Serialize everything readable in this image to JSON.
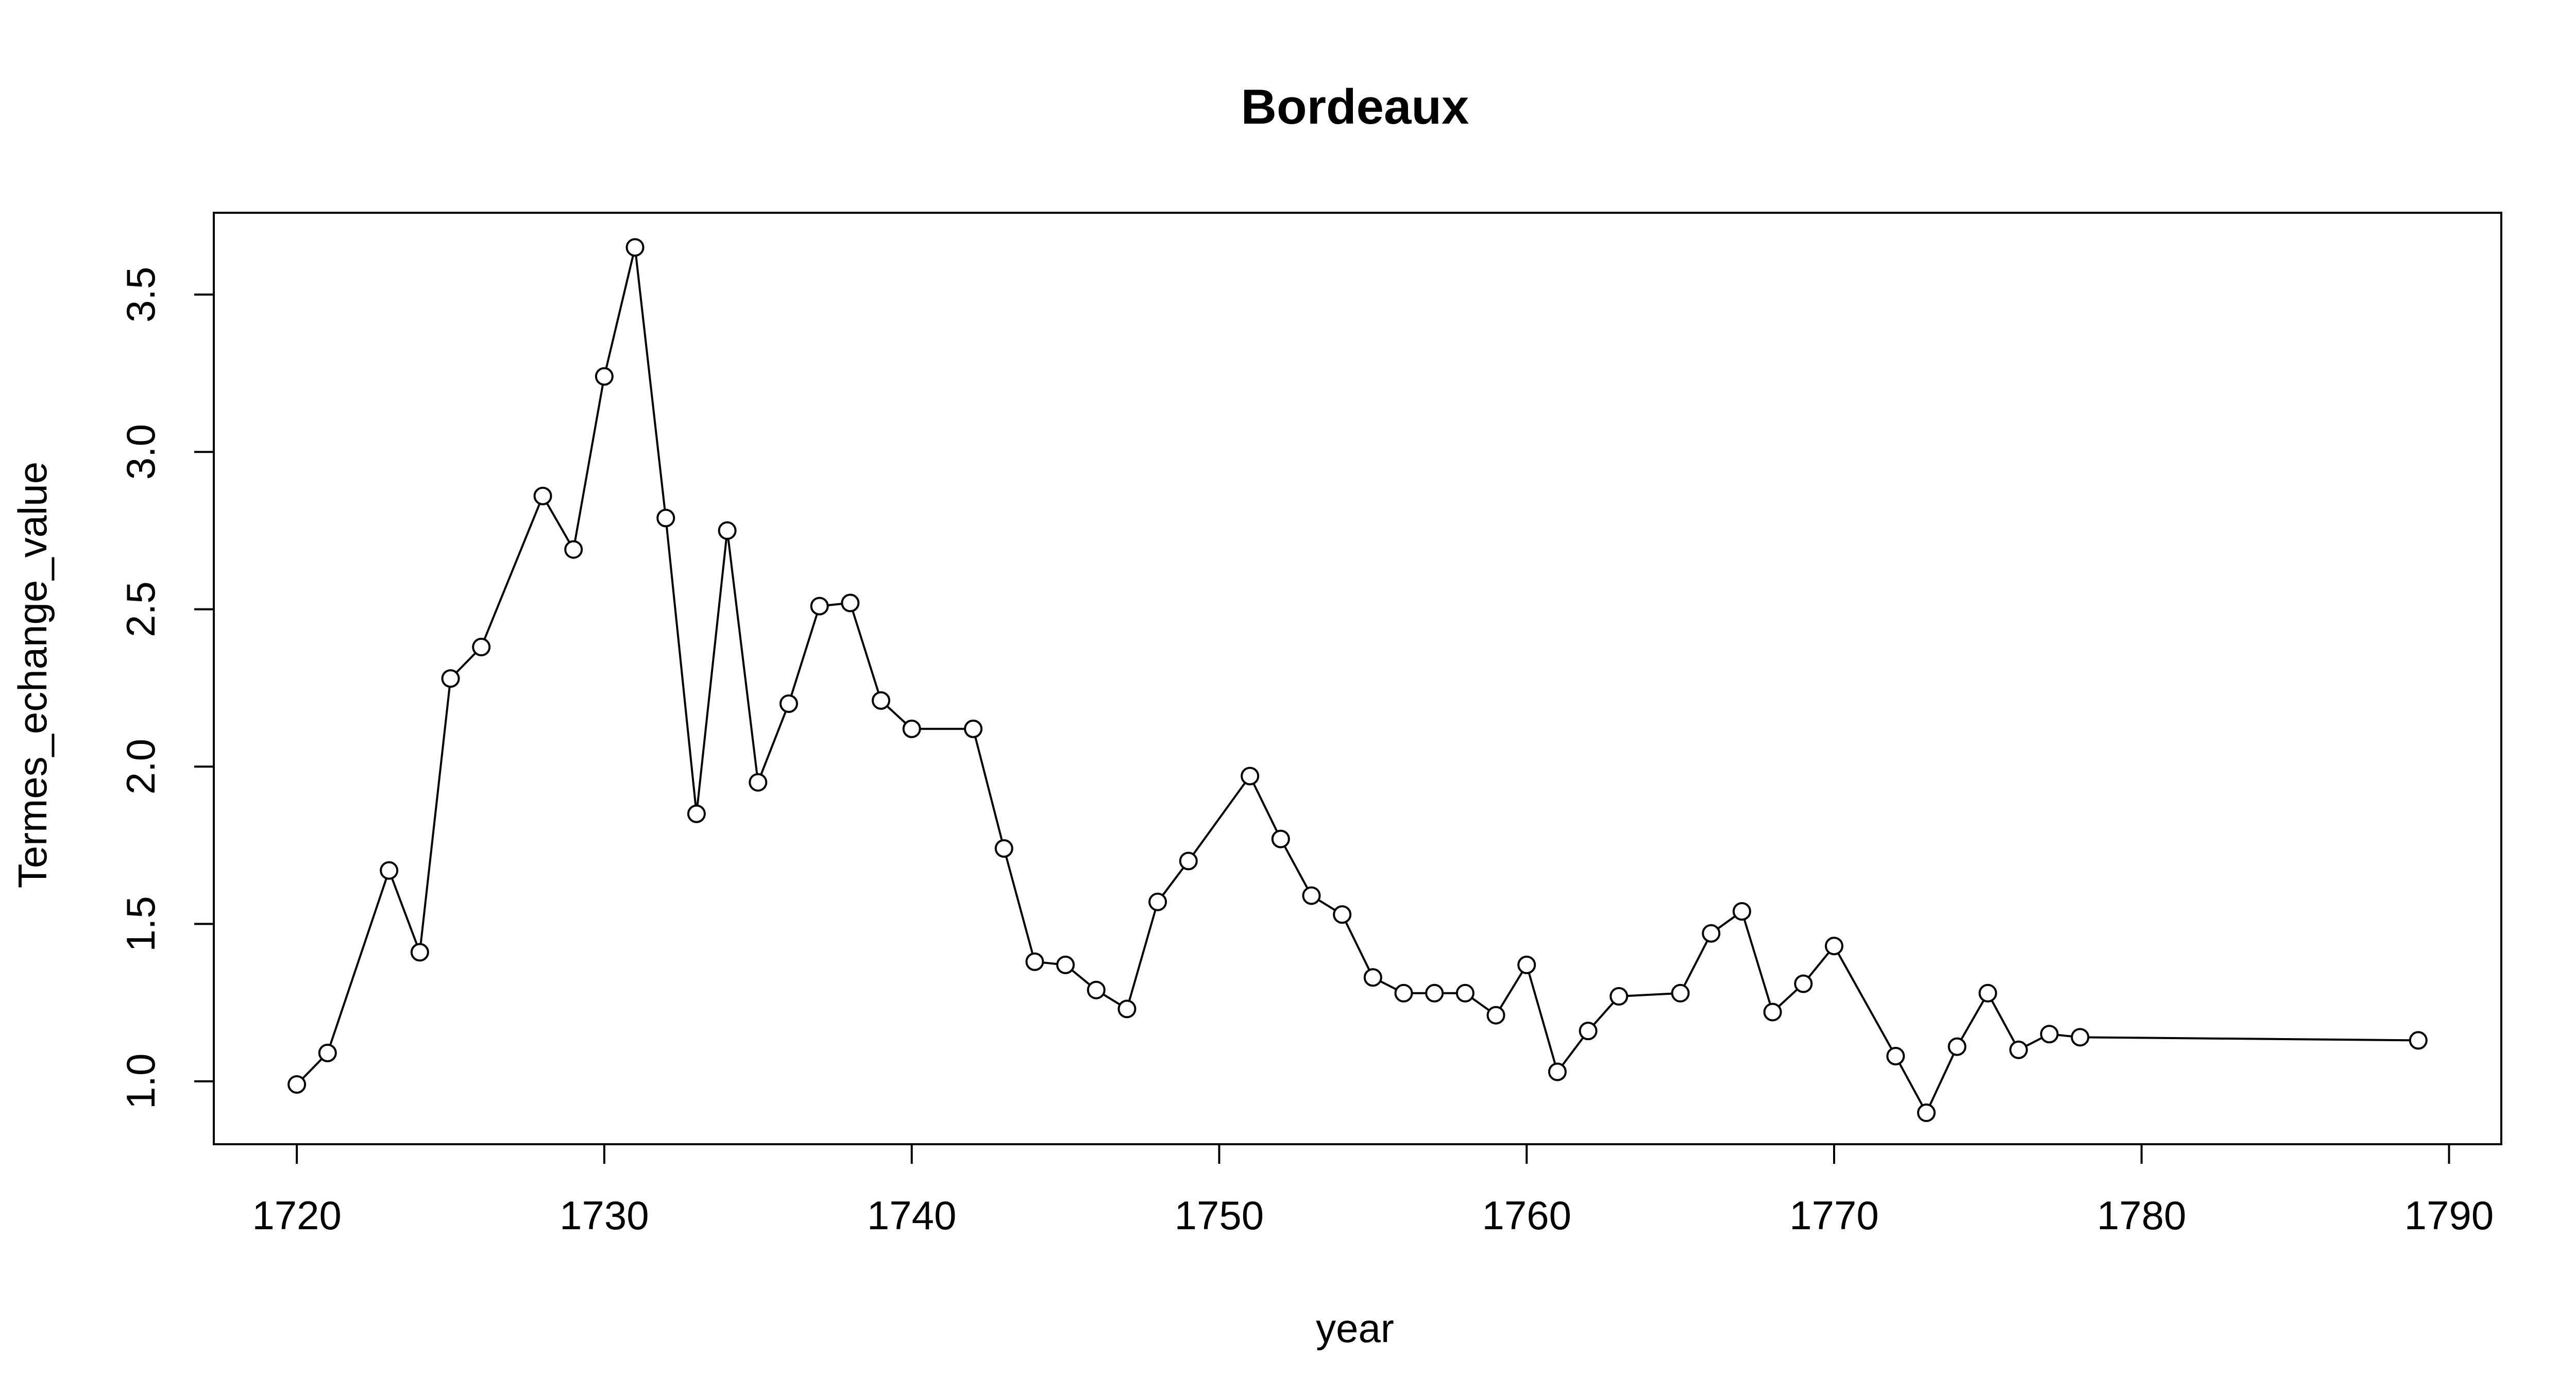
{
  "chart_data": {
    "type": "line",
    "title": "Bordeaux",
    "xlabel": "year",
    "ylabel": "Termes_echange_value",
    "xlim": [
      1717.3,
      1791.7
    ],
    "ylim": [
      0.8,
      3.76
    ],
    "x_ticks": [
      1720,
      1730,
      1740,
      1750,
      1760,
      1770,
      1780,
      1790
    ],
    "y_ticks": [
      1.0,
      1.5,
      2.0,
      2.5,
      3.0,
      3.5
    ],
    "y_tick_labels": [
      "1.0",
      "1.5",
      "2.0",
      "2.5",
      "3.0",
      "3.5"
    ],
    "grid": false,
    "marker": "open-circle",
    "series": [
      {
        "color": "#000000",
        "points": [
          [
            1720,
            0.99
          ],
          [
            1721,
            1.09
          ],
          [
            1723,
            1.67
          ],
          [
            1724,
            1.41
          ],
          [
            1725,
            2.28
          ],
          [
            1726,
            2.38
          ],
          [
            1728,
            2.86
          ],
          [
            1729,
            2.69
          ],
          [
            1730,
            3.24
          ],
          [
            1731,
            3.65
          ],
          [
            1732,
            2.79
          ],
          [
            1733,
            1.85
          ],
          [
            1734,
            2.75
          ],
          [
            1735,
            1.95
          ],
          [
            1736,
            2.2
          ],
          [
            1737,
            2.51
          ],
          [
            1738,
            2.52
          ],
          [
            1739,
            2.21
          ],
          [
            1740,
            2.12
          ],
          [
            1742,
            2.12
          ],
          [
            1743,
            1.74
          ],
          [
            1744,
            1.38
          ],
          [
            1745,
            1.37
          ],
          [
            1746,
            1.29
          ],
          [
            1747,
            1.23
          ],
          [
            1748,
            1.57
          ],
          [
            1749,
            1.7
          ],
          [
            1751,
            1.97
          ],
          [
            1752,
            1.77
          ],
          [
            1753,
            1.59
          ],
          [
            1754,
            1.53
          ],
          [
            1755,
            1.33
          ],
          [
            1756,
            1.28
          ],
          [
            1757,
            1.28
          ],
          [
            1758,
            1.28
          ],
          [
            1759,
            1.21
          ],
          [
            1760,
            1.37
          ],
          [
            1761,
            1.03
          ],
          [
            1762,
            1.16
          ],
          [
            1763,
            1.27
          ],
          [
            1765,
            1.28
          ],
          [
            1766,
            1.47
          ],
          [
            1767,
            1.54
          ],
          [
            1768,
            1.22
          ],
          [
            1769,
            1.31
          ],
          [
            1770,
            1.43
          ],
          [
            1772,
            1.08
          ],
          [
            1773,
            0.9
          ],
          [
            1774,
            1.11
          ],
          [
            1775,
            1.28
          ],
          [
            1776,
            1.1
          ],
          [
            1777,
            1.15
          ],
          [
            1778,
            1.14
          ],
          [
            1789,
            1.13
          ]
        ]
      }
    ]
  }
}
